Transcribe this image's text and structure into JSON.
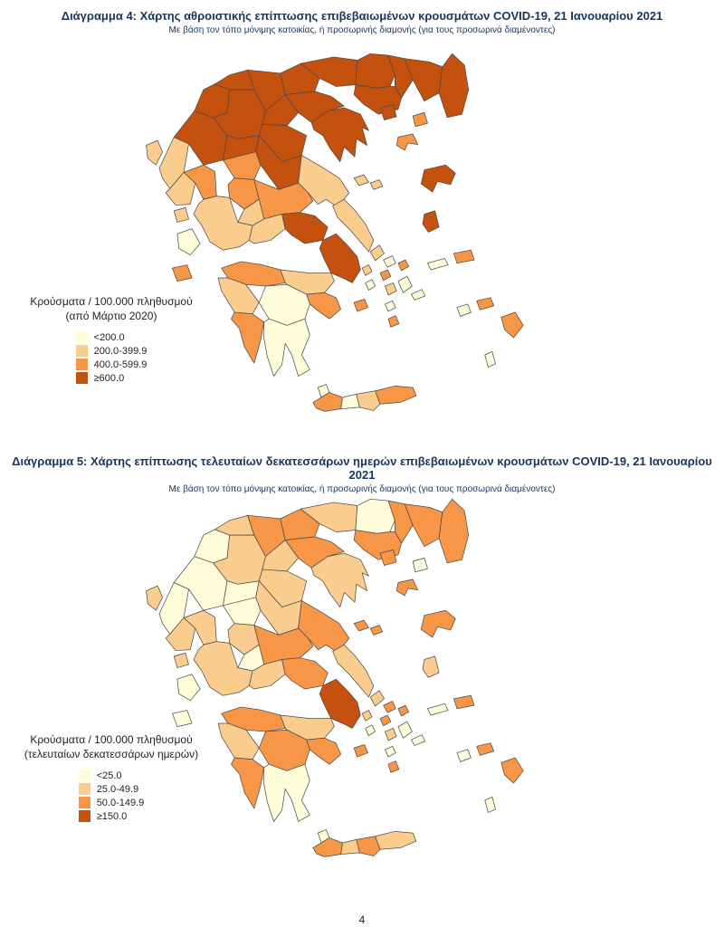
{
  "page": {
    "number": "4"
  },
  "map_style": {
    "border_color": "#4a4a4a",
    "sea_color": "#ffffff"
  },
  "chart_data": [
    {
      "type": "choropleth",
      "region_name": "Greece",
      "title": "Διάγραμμα 4: Χάρτης αθροιστικής επίπτωσης επιβεβαιωμένων κρουσμάτων COVID-19, 21 Ιανουαρίου 2021",
      "subtitle": "Με βάση τον τόπο μόνιμης κατοικίας, ή προσωρινής διαμονής (για τους προσωρινά διαμένοντες)",
      "legend_title_line1": "Κρούσματα / 100.000 πληθυσμού",
      "legend_title_line2": "(από Μάρτιο 2020)",
      "classes": [
        {
          "label": "<200.0",
          "color": "#FFFCD9"
        },
        {
          "label": "200.0-399.9",
          "color": "#FACD8E"
        },
        {
          "label": "400.0-599.9",
          "color": "#F79646"
        },
        {
          "label": "≥600.0",
          "color": "#C4510E"
        }
      ],
      "region_classes": {
        "thesprotia": 1,
        "ioannina": 3,
        "preveza": 1,
        "arta": 2,
        "kastoria": 3,
        "florina": 3,
        "kozani": 3,
        "grevena": 3,
        "pella": 3,
        "imathia": 3,
        "pieria": 3,
        "thessaloniki": 3,
        "kilkis": 3,
        "serres": 3,
        "chalkidiki": 3,
        "drama": 3,
        "kavala": 3,
        "xanthi": 3,
        "rodopi": 3,
        "evros": 3,
        "trikala": 2,
        "karditsa": 2,
        "larissa": 3,
        "magnesia": 1,
        "aitoloakarnania": 1,
        "evrytania": 1,
        "fthiotida": 2,
        "fokida": 1,
        "viotia": 3,
        "attica": 3,
        "evia": 1,
        "achaia": 2,
        "corinthia": 1,
        "argolida": 2,
        "arcadia": 0,
        "ilia": 1,
        "messinia": 2,
        "laconia": 0,
        "corfu": 1,
        "lefkada": 1,
        "kefalonia": 0,
        "zakynthos": 2,
        "kythira": 0,
        "thasos": 3,
        "samothraki": 2,
        "limnos": 2,
        "lesvos": 3,
        "chios": 3,
        "samos": 2,
        "ikaria": 0,
        "sporades1": 1,
        "sporades2": 1,
        "andros": 1,
        "tinos": 0,
        "mykonos": 2,
        "syros": 2,
        "kea": 1,
        "kythnos": 0,
        "paros": 1,
        "naxos": 0,
        "milos": 2,
        "ios": 0,
        "santorini": 2,
        "amorgos": 0,
        "astypalea": 0,
        "kos": 2,
        "rhodes": 2,
        "karpathos": 0,
        "crete_chania": 2,
        "crete_rethymno": 0,
        "crete_heraklion": 1,
        "crete_lasithi": 2
      }
    },
    {
      "type": "choropleth",
      "region_name": "Greece",
      "title": "Διάγραμμα 5: Χάρτης επίπτωσης τελευταίων δεκατεσσάρων ημερών επιβεβαιωμένων κρουσμάτων COVID-19, 21 Ιανουαρίου 2021",
      "subtitle": "Με βάση τον τόπο μόνιμης κατοικίας, ή προσωρινής διαμονής (για τους προσωρινά διαμένοντες)",
      "legend_title_line1": "Κρούσματα / 100.000 πληθυσμού",
      "legend_title_line2": "(τελευταίων δεκατεσσάρων ημερών)",
      "classes": [
        {
          "label": "<25.0",
          "color": "#FFFCD9"
        },
        {
          "label": "25.0-49.9",
          "color": "#FACD8E"
        },
        {
          "label": "50.0-149.9",
          "color": "#F79646"
        },
        {
          "label": "≥150.0",
          "color": "#C4510E"
        }
      ],
      "region_classes": {
        "thesprotia": 0,
        "ioannina": 0,
        "preveza": 1,
        "arta": 1,
        "kastoria": 0,
        "florina": 1,
        "kozani": 1,
        "grevena": 0,
        "pella": 2,
        "imathia": 1,
        "pieria": 1,
        "thessaloniki": 2,
        "kilkis": 2,
        "serres": 1,
        "chalkidiki": 1,
        "drama": 0,
        "kavala": 2,
        "xanthi": 2,
        "rodopi": 2,
        "evros": 2,
        "trikala": 0,
        "karditsa": 1,
        "larissa": 1,
        "magnesia": 2,
        "aitoloakarnania": 1,
        "evrytania": 0,
        "fthiotida": 2,
        "fokida": 1,
        "viotia": 2,
        "attica": 3,
        "evia": 1,
        "achaia": 2,
        "corinthia": 1,
        "argolida": 2,
        "arcadia": 2,
        "ilia": 1,
        "messinia": 2,
        "laconia": 0,
        "corfu": 1,
        "lefkada": 1,
        "kefalonia": 0,
        "zakynthos": 0,
        "kythira": 0,
        "thasos": 2,
        "samothraki": 0,
        "limnos": 2,
        "lesvos": 2,
        "chios": 1,
        "samos": 2,
        "ikaria": 0,
        "sporades1": 2,
        "sporades2": 2,
        "andros": 1,
        "tinos": 2,
        "mykonos": 2,
        "syros": 2,
        "kea": 1,
        "kythnos": 0,
        "paros": 1,
        "naxos": 0,
        "milos": 2,
        "ios": 0,
        "santorini": 2,
        "amorgos": 0,
        "astypalea": 0,
        "kos": 2,
        "rhodes": 2,
        "karpathos": 0,
        "crete_chania": 2,
        "crete_rethymno": 1,
        "crete_heraklion": 2,
        "crete_lasithi": 1
      }
    }
  ]
}
